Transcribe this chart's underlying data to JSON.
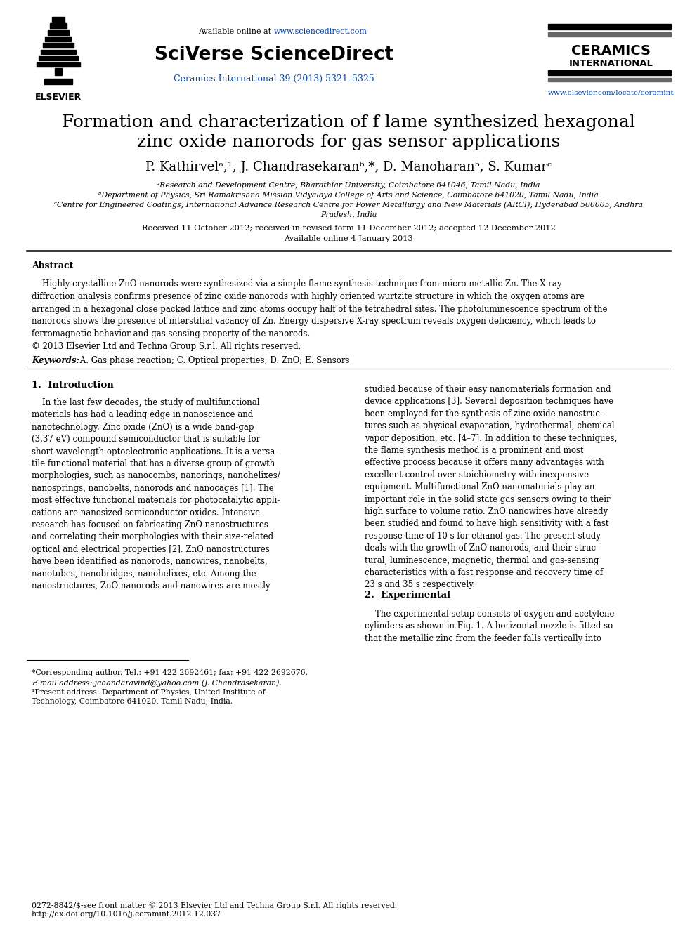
{
  "bg_color": "#ffffff",
  "title_line1": "Formation and characterization of f lame synthesized hexagonal",
  "title_line2": "zinc oxide nanorods for gas sensor applications",
  "authors_line": "P. Kathirvelᵃ,¹, J. Chandrasekaranᵇ,*, D. Manoharanᵇ, S. Kumarᶜ",
  "affil_a": "ᵃResearch and Development Centre, Bharathiar University, Coimbatore 641046, Tamil Nadu, India",
  "affil_b": "ᵇDepartment of Physics, Sri Ramakrishna Mission Vidyalaya College of Arts and Science, Coimbatore 641020, Tamil Nadu, India",
  "affil_c1": "ᶜCentre for Engineered Coatings, International Advance Research Centre for Power Metallurgy and New Materials (ARCI), Hyderabad 500005, Andhra",
  "affil_c2": "Pradesh, India",
  "received": "Received 11 October 2012; received in revised form 11 December 2012; accepted 12 December 2012",
  "available": "Available online 4 January 2013",
  "abstract_title": "Abstract",
  "keywords_label": "Keywords:",
  "keywords_text": " A. Gas phase reaction; C. Optical properties; D. ZnO; E. Sensors",
  "section1_title": "1.  Introduction",
  "section2_title": "2.  Experimental",
  "footnote_star": "*Corresponding author. Tel.: +91 422 2692461; fax: +91 422 2692676.",
  "footnote_email": "E-mail address: jchandaravind@yahoo.com (J. Chandrasekaran).",
  "footnote_1a": "¹Present address: Department of Physics, United Institute of",
  "footnote_1b": "Technology, Coimbatore 641020, Tamil Nadu, India.",
  "footer1": "0272-8842/$‐see front matter © 2013 Elsevier Ltd and Techna Group S.r.l. All rights reserved.",
  "footer2": "http://dx.doi.org/10.1016/j.ceramint.2012.12.037",
  "header_avail_plain": "Available online at ",
  "header_avail_link": "www.sciencedirect.com",
  "header_sciverse": "SciVerse ScienceDirect",
  "header_journal": "Ceramics International 39 (2013) 5321–5325",
  "header_ceramics1": "CERAMICS",
  "header_ceramics2": "INTERNATIONAL",
  "header_url": "www.elsevier.com/locate/ceramint",
  "blue_link": "#0645ad",
  "blue_dark": "#00008B",
  "text_black": "#000000",
  "abstract_body": "    Highly crystalline ZnO nanorods were synthesized via a simple flame synthesis technique from micro-metallic Zn. The X-ray\ndiffraction analysis confirms presence of zinc oxide nanorods with highly oriented wurtzite structure in which the oxygen atoms are\narranged in a hexagonal close packed lattice and zinc atoms occupy half of the tetrahedral sites. The photoluminescence spectrum of the\nnanorods shows the presence of interstitial vacancy of Zn. Energy dispersive X-ray spectrum reveals oxygen deficiency, which leads to\nferromagnetic behavior and gas sensing property of the nanorods.\n© 2013 Elsevier Ltd and Techna Group S.r.l. All rights reserved.",
  "col1_intro": "    In the last few decades, the study of multifunctional\nmaterials has had a leading edge in nanoscience and\nnanotechnology. Zinc oxide (ZnO) is a wide band-gap\n(3.37 eV) compound semiconductor that is suitable for\nshort wavelength optoelectronic applications. It is a versa-\ntile functional material that has a diverse group of growth\nmorphologies, such as nanocombs, nanorings, nanohelixes/\nnanosprings, nanobelts, nanorods and nanocages [1]. The\nmost effective functional materials for photocatalytic appli-\ncations are nanosized semiconductor oxides. Intensive\nresearch has focused on fabricating ZnO nanostructures\nand correlating their morphologies with their size-related\noptical and electrical properties [2]. ZnO nanostructures\nhave been identified as nanorods, nanowires, nanobelts,\nnanotubes, nanobridges, nanohelixes, etc. Among the\nnanostructures, ZnO nanorods and nanowires are mostly",
  "col2_intro": "studied because of their easy nanomaterials formation and\ndevice applications [3]. Several deposition techniques have\nbeen employed for the synthesis of zinc oxide nanostruc-\ntures such as physical evaporation, hydrothermal, chemical\nvapor deposition, etc. [4–7]. In addition to these techniques,\nthe flame synthesis method is a prominent and most\neffective process because it offers many advantages with\nexcellent control over stoichiometry with inexpensive\nequipment. Multifunctional ZnO nanomaterials play an\nimportant role in the solid state gas sensors owing to their\nhigh surface to volume ratio. ZnO nanowires have already\nbeen studied and found to have high sensitivity with a fast\nresponse time of 10 s for ethanol gas. The present study\ndeals with the growth of ZnO nanorods, and their struc-\ntural, luminescence, magnetic, thermal and gas-sensing\ncharacteristics with a fast response and recovery time of\n23 s and 35 s respectively.",
  "col2_exp": "    The experimental setup consists of oxygen and acetylene\ncylinders as shown in Fig. 1. A horizontal nozzle is fitted so\nthat the metallic zinc from the feeder falls vertically into"
}
